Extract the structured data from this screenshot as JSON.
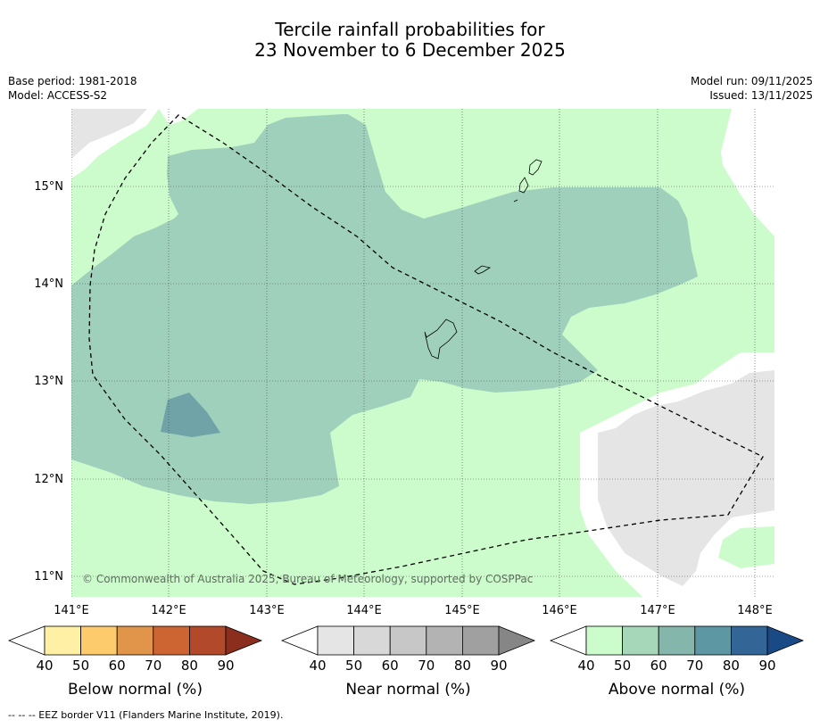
{
  "title_line1": "Tercile rainfall probabilities for",
  "title_line2": "23 November to 6 December 2025",
  "base_period": "Base period: 1981-2018",
  "model": "Model: ACCESS-S2",
  "model_run": "Model run: 09/11/2025",
  "issued": "Issued: 13/11/2025",
  "copyright": "© Commonwealth of Australia 2025, Bureau of Meteorology, supported by COSPPac",
  "lat_labels": [
    "15°N",
    "14°N",
    "13°N",
    "12°N",
    "11°N"
  ],
  "lon_labels": [
    "141°E",
    "142°E",
    "143°E",
    "144°E",
    "145°E",
    "146°E",
    "147°E",
    "148°E"
  ],
  "colorbars": [
    {
      "label": "Below normal (%)",
      "ticks": [
        "40",
        "50",
        "60",
        "70",
        "80",
        "90"
      ],
      "colors": [
        "#fff0a6",
        "#fdcb6b",
        "#e0954a",
        "#cd6532",
        "#b2492a",
        "#8c2e1e"
      ]
    },
    {
      "label": "Near normal (%)",
      "ticks": [
        "40",
        "50",
        "60",
        "70",
        "80",
        "90"
      ],
      "colors": [
        "#e5e5e5",
        "#d8d8d8",
        "#c7c7c7",
        "#b3b3b3",
        "#a0a0a0",
        "#868686"
      ]
    },
    {
      "label": "Above normal (%)",
      "ticks": [
        "40",
        "50",
        "60",
        "70",
        "80",
        "90"
      ],
      "colors": [
        "#ccfccb",
        "#a6d7b9",
        "#84b6ab",
        "#5c97a3",
        "#336597",
        "#1a4a85"
      ]
    }
  ],
  "footnote": "-- -- -- EEZ border V11 (Flanders Marine Institute, 2019).",
  "colors": {
    "above_40": "#ccfccb",
    "above_50": "#9fd0bb",
    "above_60": "#6fa3a8",
    "near_40": "#e5e5e5",
    "no_data": "#ffffff"
  }
}
